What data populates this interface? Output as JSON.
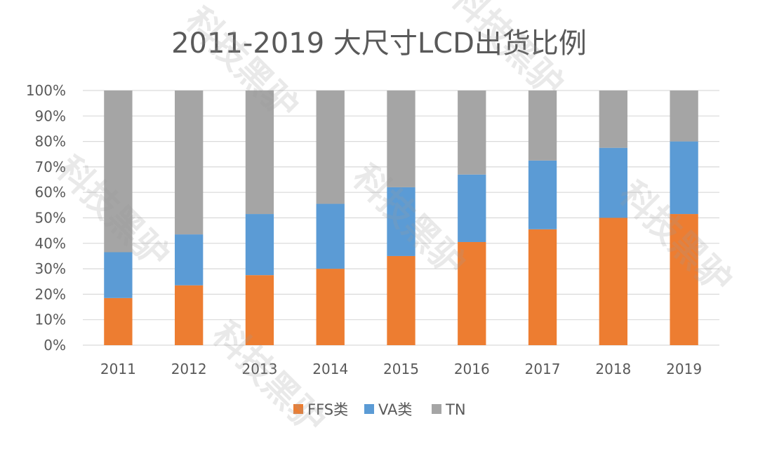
{
  "chart_data": {
    "type": "bar",
    "stacked": true,
    "title": "2011-2019 大尺寸LCD出货比例",
    "xlabel": "",
    "ylabel": "",
    "ylim": [
      0,
      100
    ],
    "yticks": [
      "0%",
      "10%",
      "20%",
      "30%",
      "40%",
      "50%",
      "60%",
      "70%",
      "80%",
      "90%",
      "100%"
    ],
    "categories": [
      "2011",
      "2012",
      "2013",
      "2014",
      "2015",
      "2016",
      "2017",
      "2018",
      "2019"
    ],
    "series": [
      {
        "name": "FFS类",
        "color": "#ed7d31",
        "values": [
          18.5,
          23.5,
          27.5,
          30,
          35,
          40.5,
          45.5,
          50,
          51.5
        ]
      },
      {
        "name": "VA类",
        "color": "#5b9bd5",
        "values": [
          18,
          20,
          24,
          25.5,
          27,
          26.5,
          27,
          27.5,
          28.5
        ]
      },
      {
        "name": "TN",
        "color": "#a5a5a5",
        "values": [
          63.5,
          56.5,
          48.5,
          44.5,
          38,
          33,
          27.5,
          22.5,
          20
        ]
      }
    ],
    "legend_position": "bottom",
    "grid": true
  },
  "watermark": {
    "text": "科技黑驴"
  }
}
